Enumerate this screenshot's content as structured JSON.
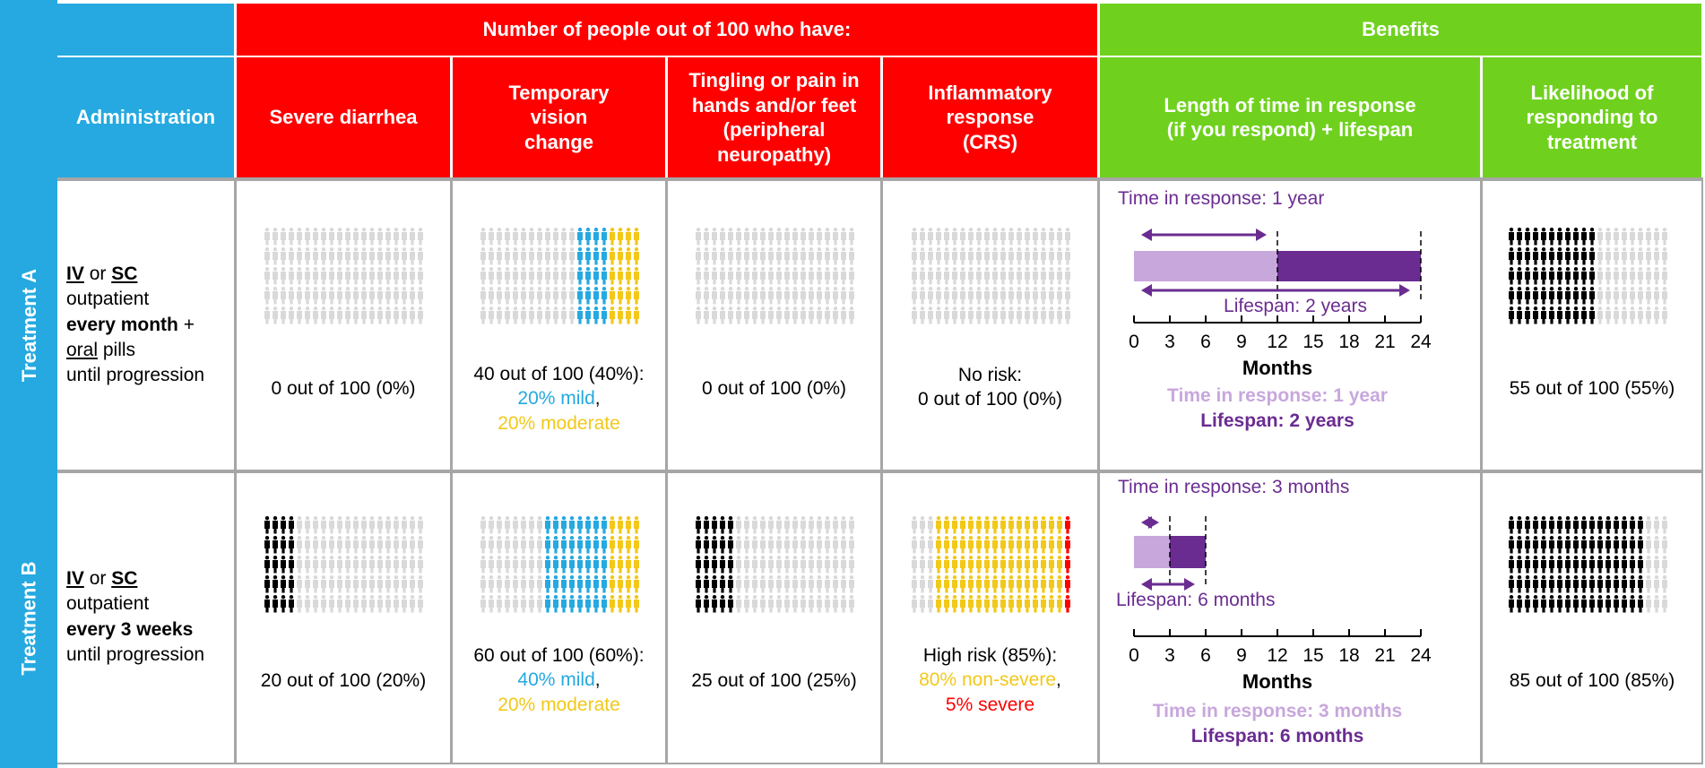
{
  "colors": {
    "blue": "#25a9e0",
    "red": "#ff0000",
    "green": "#6fd11e",
    "lavender": "#c8a7dc",
    "purple": "#6a2c91",
    "cyan": "#25a9e0",
    "yellow": "#f2c819",
    "black": "#000000",
    "gray": "#d9d9d9",
    "grid": "#a6a6a6"
  },
  "header": {
    "harms_group": "Number of people out of 100 who have:",
    "benefits_group": "Benefits",
    "administration": "Administration",
    "severe_diarrhea": "Severe diarrhea",
    "vision_change": "Temporary vision change",
    "neuropathy": "Tingling or pain in hands and/or feet (peripheral neuropathy)",
    "crs": "Inflammatory response (CRS)",
    "response_length": "Length of time in response (if you respond) + lifespan",
    "likelihood": "Likelihood of responding to treatment"
  },
  "treatments": [
    {
      "label": "Treatment A",
      "admin": {
        "route_a": "IV",
        "or": "or",
        "route_b": "SC",
        "setting": "outpatient",
        "frequency": "every month",
        "plus": "+",
        "oral": "oral",
        "pills": "pills",
        "until": "until progression"
      },
      "diarrhea": {
        "text": "0 out of 100 (0%)",
        "black": 0
      },
      "vision": {
        "text": "40 out of 100 (40%):",
        "mild": "20% mild",
        "comma": ",",
        "moderate": "20% moderate",
        "cyan": 20,
        "yellow": 20
      },
      "neuropathy": {
        "text": "0 out of 100 (0%)",
        "black": 0
      },
      "crs": {
        "line1": "No risk:",
        "line2": "0 out of 100 (0%)",
        "yellow": 0,
        "red": 0
      },
      "benefit": {
        "top_label": "Time in response: 1 year",
        "lifespan_label": "Lifespan: 2 years",
        "response_months": 12,
        "lifespan_months": 24,
        "axis_title": "Months",
        "ticks": [
          "0",
          "3",
          "6",
          "9",
          "12",
          "15",
          "18",
          "21",
          "24"
        ],
        "legend_response": "Time in response: 1 year",
        "legend_lifespan": "Lifespan: 2 years"
      },
      "likelihood": {
        "text": "55 out of 100 (55%)",
        "black": 55
      }
    },
    {
      "label": "Treatment B",
      "admin": {
        "route_a": "IV",
        "or": "or",
        "route_b": "SC",
        "setting": "outpatient",
        "frequency": "every 3 weeks",
        "until": "until progression"
      },
      "diarrhea": {
        "text": "20 out of 100 (20%)",
        "black": 20
      },
      "vision": {
        "text": "60 out of 100 (60%):",
        "mild": "40% mild",
        "comma": ",",
        "moderate": "20% moderate",
        "cyan": 40,
        "yellow": 20
      },
      "neuropathy": {
        "text": "25 out of 100 (25%)",
        "black": 25
      },
      "crs": {
        "line1": "High risk (85%):",
        "nonsevere": "80% non-severe",
        "comma": ",",
        "severe": "5% severe",
        "yellow": 80,
        "red": 5
      },
      "benefit": {
        "top_label": "Time in response: 3 months",
        "lifespan_label": "Lifespan: 6 months",
        "response_months": 3,
        "lifespan_months": 6,
        "axis_title": "Months",
        "ticks": [
          "0",
          "3",
          "6",
          "9",
          "12",
          "15",
          "18",
          "21",
          "24"
        ],
        "legend_response": "Time in response: 3 months",
        "legend_lifespan": "Lifespan: 6 months"
      },
      "likelihood": {
        "text": "85 out of 100 (85%)",
        "black": 85
      }
    }
  ]
}
